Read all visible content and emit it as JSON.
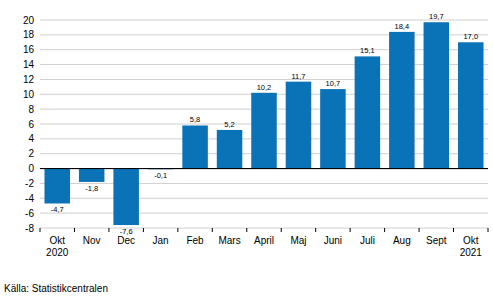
{
  "chart_data": {
    "type": "bar",
    "categories": [
      "Okt 2020",
      "Nov",
      "Dec",
      "Jan",
      "Feb",
      "Mars",
      "April",
      "Maj",
      "Juni",
      "Juli",
      "Aug",
      "Sept",
      "Okt 2021"
    ],
    "values": [
      -4.7,
      -1.8,
      -7.6,
      -0.1,
      5.8,
      5.2,
      10.2,
      11.7,
      10.7,
      15.1,
      18.4,
      19.7,
      17.0
    ],
    "value_labels": [
      "-4,7",
      "-1,8",
      "-7,6",
      "-0,1",
      "5,8",
      "5,2",
      "10,2",
      "11,7",
      "10,7",
      "15,1",
      "18,4",
      "19,7",
      "17,0"
    ],
    "data_labels": true,
    "color": "#0a72b6",
    "ylim": [
      -8,
      20
    ],
    "yticks": [
      -8,
      -6,
      -4,
      -2,
      0,
      2,
      4,
      6,
      8,
      10,
      12,
      14,
      16,
      18,
      20
    ],
    "grid": true,
    "source": "Källa: Statistikcentralen"
  }
}
